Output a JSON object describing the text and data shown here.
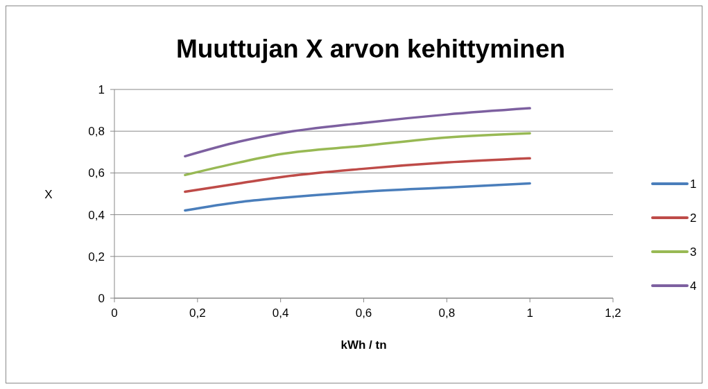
{
  "chart_data": {
    "type": "line",
    "title": "Muuttujan X arvon kehittyminen",
    "xlabel": "kWh / tn",
    "ylabel": "X",
    "x": [
      0.17,
      0.3,
      0.4,
      0.6,
      0.8,
      1
    ],
    "series": [
      {
        "name": "1",
        "color": "#4a7ebb",
        "values": [
          0.42,
          0.46,
          0.48,
          0.51,
          0.53,
          0.55
        ]
      },
      {
        "name": "2",
        "color": "#be4b48",
        "values": [
          0.51,
          0.55,
          0.58,
          0.62,
          0.65,
          0.67
        ]
      },
      {
        "name": "3",
        "color": "#98b954",
        "values": [
          0.59,
          0.65,
          0.69,
          0.73,
          0.77,
          0.79
        ]
      },
      {
        "name": "4",
        "color": "#7d60a0",
        "values": [
          0.68,
          0.75,
          0.79,
          0.84,
          0.88,
          0.91
        ]
      }
    ],
    "xlim": [
      0,
      1.2
    ],
    "xticks": [
      0,
      {
        "value": 0.2,
        "label": "0,2"
      },
      {
        "value": 0.4,
        "label": "0,4"
      },
      {
        "value": 0.6,
        "label": "0,6"
      },
      {
        "value": 0.8,
        "label": "0,8"
      },
      1,
      {
        "value": 1.2,
        "label": "1,2"
      }
    ],
    "ylim": [
      0,
      1
    ],
    "yticks": [
      0,
      {
        "value": 0.2,
        "label": "0,2"
      },
      {
        "value": 0.4,
        "label": "0,4"
      },
      {
        "value": 0.6,
        "label": "0,6"
      },
      {
        "value": 0.8,
        "label": "0,8"
      },
      1
    ],
    "grid": "y",
    "legend": "right",
    "line_style": "solid",
    "marker": "none"
  }
}
